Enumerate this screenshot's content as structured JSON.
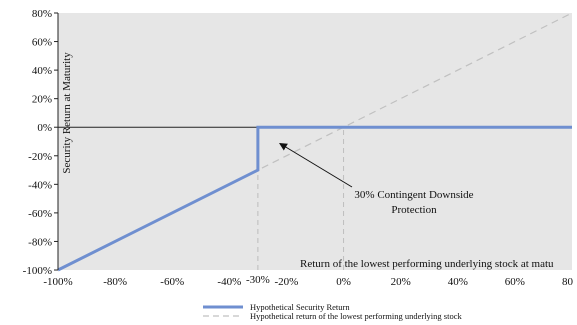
{
  "chart_data": {
    "type": "line",
    "xlabel": "Return of the lowest performing underlying stock at matu",
    "ylabel": "Security Return at Maturity",
    "xlim": [
      -100,
      80
    ],
    "ylim": [
      -100,
      80
    ],
    "x_ticks": [
      "-100%",
      "-80%",
      "-60%",
      "-40%",
      "-30%",
      "-20%",
      "0%",
      "20%",
      "40%",
      "60%",
      "80"
    ],
    "x_tick_values": [
      -100,
      -80,
      -60,
      -40,
      -30,
      -20,
      0,
      20,
      40,
      60,
      80
    ],
    "y_ticks": [
      "80%",
      "60%",
      "40%",
      "20%",
      "0%",
      "-20%",
      "-40%",
      "-60%",
      "-80%",
      "-100%"
    ],
    "y_tick_values": [
      80,
      60,
      40,
      20,
      0,
      -20,
      -40,
      -60,
      -80,
      -100
    ],
    "series": [
      {
        "name": "Hypothetical Security Return",
        "color": "#6f8fd0",
        "style": "solid",
        "x": [
          -100,
          -30,
          -30,
          80
        ],
        "y": [
          -100,
          -30,
          0,
          0
        ]
      },
      {
        "name": "Hypothetical return of the lowest performing underlying stock",
        "color": "#c0c0c0",
        "style": "dashed",
        "x": [
          -100,
          80
        ],
        "y": [
          -100,
          80
        ]
      }
    ],
    "reference_lines": {
      "vertical_dashed_x": [
        -30,
        0
      ],
      "horizontal_zero": true
    },
    "annotation": {
      "text_line1": "30% Contingent Downside",
      "text_line2": "Protection",
      "arrow_to_x": -23,
      "arrow_to_y": -10
    },
    "grid": false,
    "background": "#e6e6e6",
    "legend_position": "bottom-center"
  }
}
